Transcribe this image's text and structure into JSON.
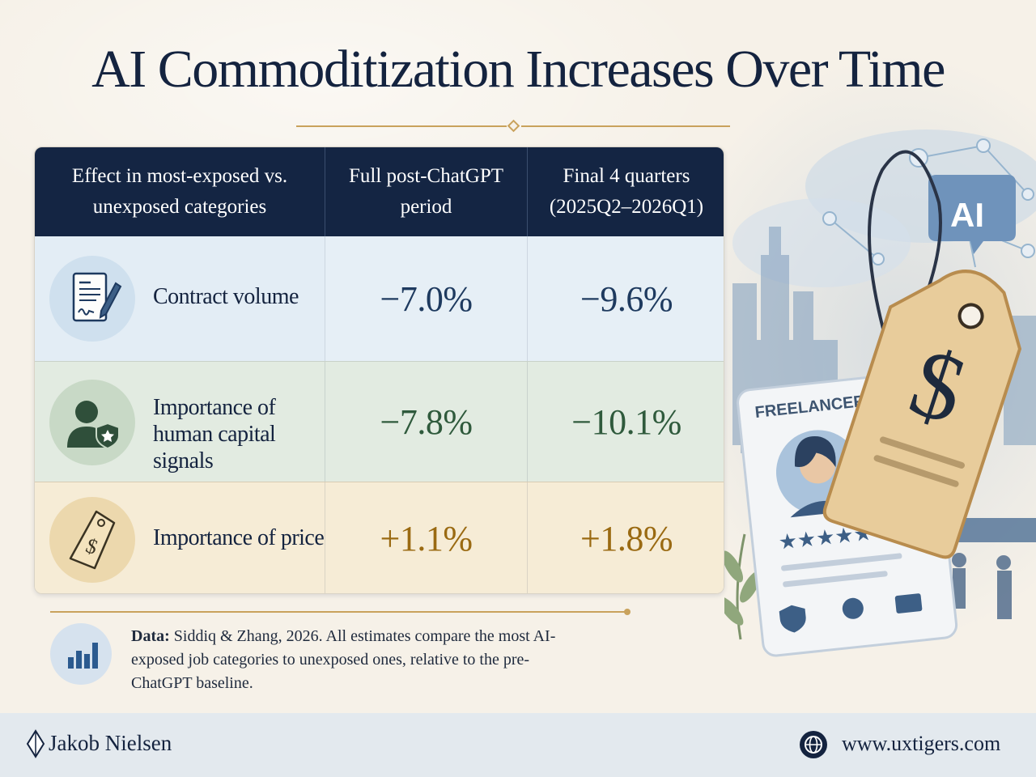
{
  "title": "AI Commoditization Increases Over Time",
  "table": {
    "headers": [
      "Effect in most-exposed vs. unexposed categories",
      "Full post-ChatGPT period",
      "Final 4 quarters (2025Q2–2026Q1)"
    ],
    "header_lines": {
      "c1": [
        "Effect in most-exposed vs.",
        "unexposed categories"
      ],
      "c2": [
        "Full post-ChatGPT",
        "period"
      ],
      "c3": [
        "Final 4 quarters",
        "(2025Q2–2026Q1)"
      ]
    },
    "rows": [
      {
        "label": "Contract volume",
        "icon": "contract-pen-icon",
        "full_period": "−7.0%",
        "final_quarters": "−9.6%"
      },
      {
        "label": "Importance of human capital signals",
        "icon": "person-badge-icon",
        "full_period": "−7.8%",
        "final_quarters": "−10.1%"
      },
      {
        "label": "Importance of price",
        "icon": "price-tag-icon",
        "full_period": "+1.1%",
        "final_quarters": "+1.8%"
      }
    ]
  },
  "note": {
    "icon": "bar-chart-icon",
    "prefix": "Data:",
    "text": " Siddiq & Zhang, 2026. All estimates compare the most AI-exposed job categories to unexposed ones, relative to the pre-ChatGPT baseline."
  },
  "illustration": {
    "card_label": "FREELANCER",
    "ai_bubble": "AI",
    "stars": "★★★★★",
    "tag_symbol": "$"
  },
  "footer": {
    "author": "Jakob Nielsen",
    "website": "www.uxtigers.com",
    "globe_icon": "globe-icon"
  },
  "colors": {
    "navy": "#142543",
    "gold": "#c9a25c",
    "blue_row": "#e3edf5",
    "green_row": "#e2ebe1",
    "tan_row": "#f6ecd6"
  }
}
